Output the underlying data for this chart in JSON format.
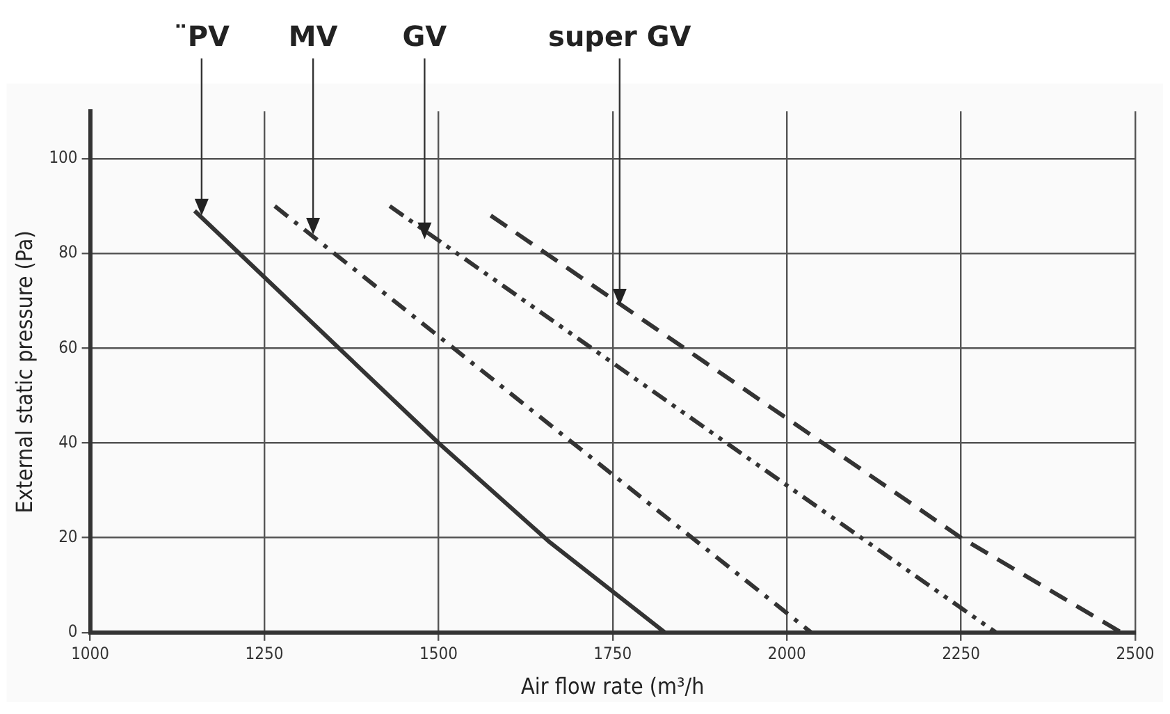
{
  "chart_data": {
    "type": "line",
    "xlabel": "Air flow rate (m³/h",
    "ylabel": "External static pressure (Pa)",
    "xlim": [
      1000,
      2500
    ],
    "xticks": [
      1000,
      1250,
      1500,
      1750,
      2000,
      2250,
      2500
    ],
    "ylim": [
      0,
      110
    ],
    "yticks": [
      0,
      20,
      40,
      60,
      80,
      100
    ],
    "grid": true,
    "legend": false,
    "marker": "none",
    "series": [
      {
        "color": "#333333",
        "line_style": "solid",
        "x": [
          1150,
          1500,
          1660,
          1825
        ],
        "values": [
          89,
          40,
          19,
          0
        ]
      },
      {
        "color": "#333333",
        "line_style": "dashdot",
        "x": [
          1265,
          2035
        ],
        "values": [
          90,
          0
        ]
      },
      {
        "color": "#333333",
        "line_style": "dashdotdot",
        "x": [
          1430,
          2300
        ],
        "values": [
          90,
          0
        ]
      },
      {
        "color": "#333333",
        "line_style": "dashed",
        "x": [
          1575,
          2250,
          2480
        ],
        "values": [
          88,
          20,
          0
        ]
      }
    ],
    "annotations": [
      {
        "text": "¨PV",
        "x": 1160,
        "y": 88
      },
      {
        "text": "MV",
        "x": 1320,
        "y": 84
      },
      {
        "text": "GV",
        "x": 1480,
        "y": 83
      },
      {
        "text": "super GV",
        "x": 1760,
        "y": 69
      }
    ]
  }
}
